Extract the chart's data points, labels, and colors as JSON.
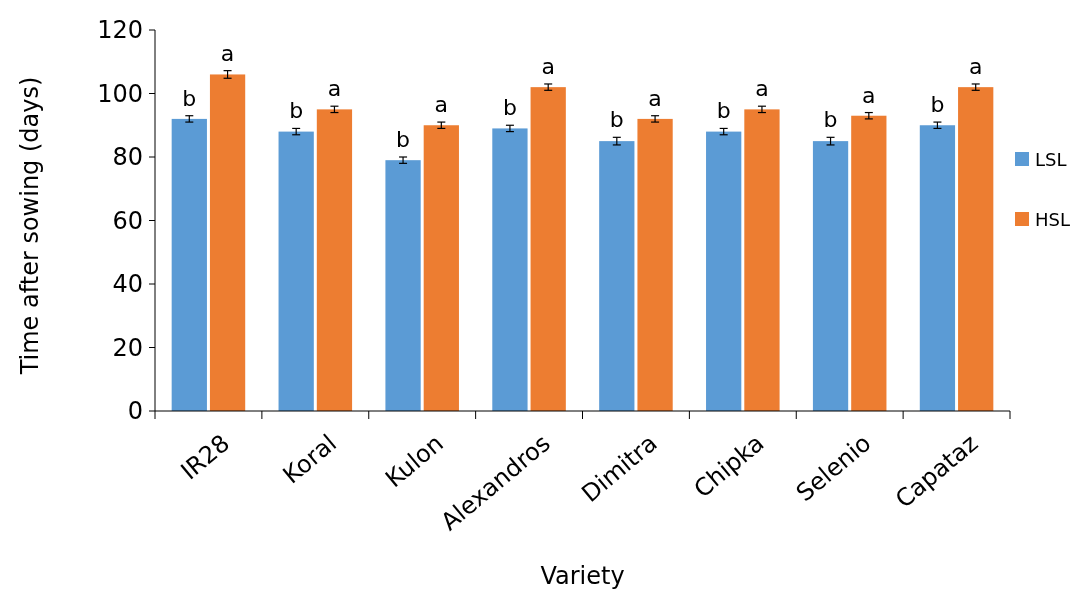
{
  "chart_data": {
    "type": "bar",
    "xlabel": "Variety",
    "ylabel": "Time after sowing (days)",
    "categories": [
      "IR28",
      "Koral",
      "Kulon",
      "Alexandros",
      "Dimitra",
      "Chipka",
      "Selenio",
      "Capataz"
    ],
    "series": [
      {
        "name": "LSL",
        "color": "#5b9bd5",
        "values": [
          92,
          88,
          79,
          89,
          85,
          88,
          85,
          90
        ],
        "errors": [
          1,
          1,
          1,
          1,
          1.2,
          1,
          1.2,
          1
        ]
      },
      {
        "name": "HSL",
        "color": "#ed7d31",
        "values": [
          106,
          95,
          90,
          102,
          92,
          95,
          93,
          102
        ],
        "errors": [
          1.2,
          1,
          1,
          1,
          1,
          1,
          1,
          1
        ]
      }
    ],
    "ylim": [
      0,
      120
    ],
    "yticks": [
      0,
      20,
      40,
      60,
      80,
      100,
      120
    ],
    "grid": false,
    "legend": "right",
    "annotations": [
      "b",
      "a",
      "b",
      "a",
      "b",
      "a",
      "b",
      "a",
      "b",
      "a",
      "b",
      "a",
      "b",
      "a",
      "b",
      "a"
    ]
  }
}
